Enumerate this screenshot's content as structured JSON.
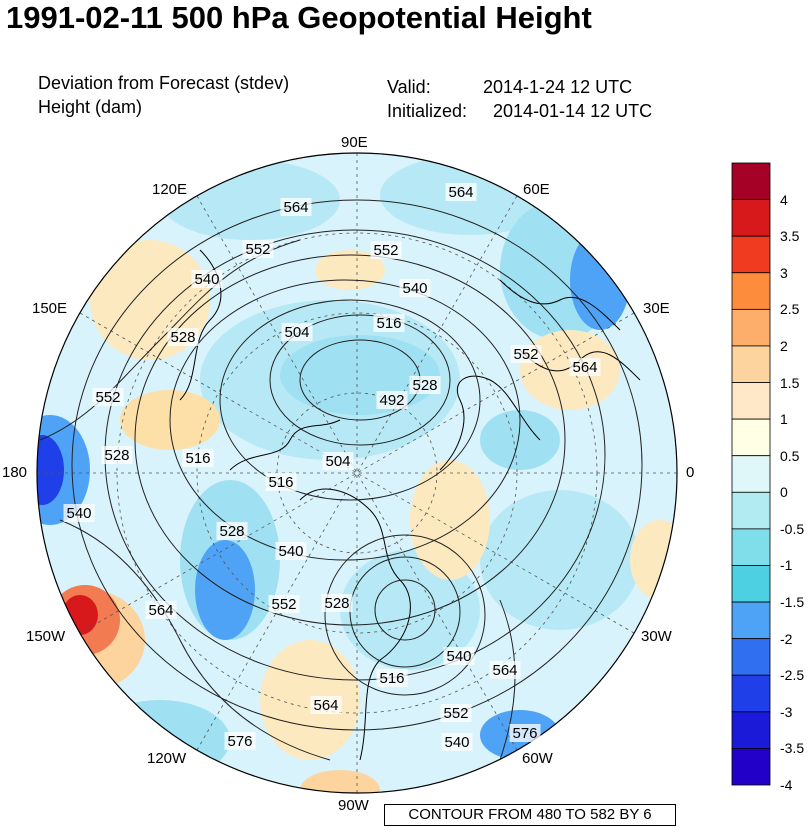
{
  "title": "1991-02-11 500 hPa Geopotential Height",
  "left_subtitle": [
    "Deviation from Forecast (stdev)",
    "Height (dam)"
  ],
  "valid_label": "Valid:",
  "valid_value": "2014-1-24 12 UTC",
  "init_label": "Initialized:",
  "init_value": "2014-01-14 12 UTC",
  "longitude_labels": [
    "90E",
    "120E",
    "60E",
    "150E",
    "30E",
    "180",
    "0",
    "150W",
    "30W",
    "120W",
    "60W",
    "90W"
  ],
  "contour_labels": [
    "564",
    "564",
    "552",
    "552",
    "540",
    "540",
    "504",
    "516",
    "528",
    "552",
    "564",
    "528",
    "492",
    "552",
    "528",
    "540",
    "516",
    "504",
    "516",
    "528",
    "540",
    "540",
    "552",
    "564",
    "528",
    "516",
    "540",
    "564",
    "564",
    "552",
    "576",
    "576"
  ],
  "colorbar": {
    "labels": [
      "4",
      "3.5",
      "3",
      "2.5",
      "2",
      "1.5",
      "1",
      "0.5",
      "0",
      "-0.5",
      "-1",
      "-1.5",
      "-2",
      "-2.5",
      "-3",
      "-3.5",
      "-4"
    ],
    "colors": [
      "#a50026",
      "#d7191c",
      "#f03b20",
      "#fd8d3c",
      "#fdae6b",
      "#fdd49e",
      "#fee8c8",
      "#ffffe5",
      "#e0f7fa",
      "#b2ebf2",
      "#80deea",
      "#4dd0e1",
      "#4fa3f7",
      "#2f6ff0",
      "#1f3fe8",
      "#1a1ad8",
      "#2200c8"
    ]
  },
  "footer": "CONTOUR FROM 480 TO 582 BY 6"
}
